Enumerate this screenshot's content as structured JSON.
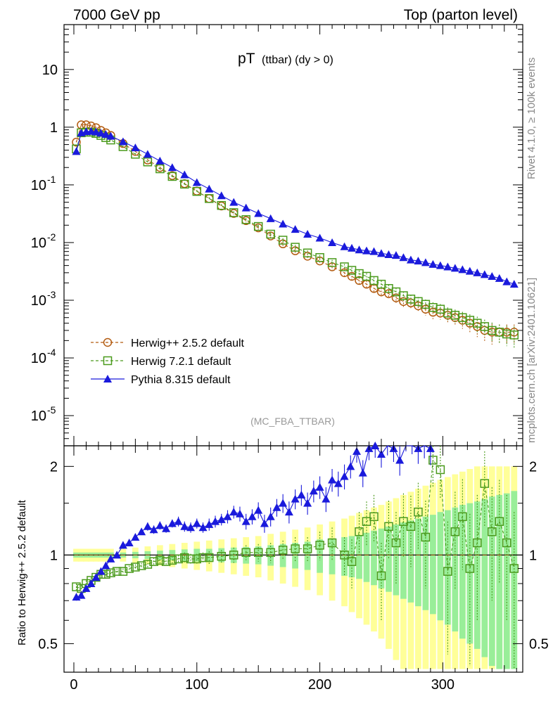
{
  "header": {
    "left": "7000 GeV pp",
    "right": "Top (parton level)"
  },
  "side": {
    "rivet": "Rivet 4.1.0, ≥ 100k events",
    "mcplots": "mcplots.cern.ch [arXiv:2401.10621]"
  },
  "colors": {
    "herwig252": "#b35c11",
    "herwig721": "#4a9a1c",
    "pythia": "#1a1adc",
    "band_yellow": "#ffff99",
    "band_green": "#99ee99"
  },
  "chart_data": [
    {
      "type": "scatter",
      "title": "pT",
      "title_sub": "(ttbar) (dy > 0)",
      "watermark": "(MC_FBA_TTBAR)",
      "yscale": "log",
      "xlim": [
        -8,
        365
      ],
      "ylim": [
        3e-06,
        60
      ],
      "y_tick_labels": [
        "10",
        "1",
        "10^-1",
        "10^-2",
        "10^-3",
        "10^-4",
        "10^-5"
      ],
      "legend": [
        {
          "label": "Herwig++ 2.5.2 default",
          "series": "herwig252"
        },
        {
          "label": "Herwig 7.2.1 default",
          "series": "herwig721"
        },
        {
          "label": "Pythia 8.315 default",
          "series": "pythia"
        }
      ],
      "series": [
        {
          "name": "Herwig++ 2.5.2 default",
          "key": "herwig252",
          "x": [
            2,
            6,
            10,
            14,
            18,
            22,
            26,
            30,
            40,
            50,
            60,
            70,
            80,
            90,
            100,
            110,
            120,
            130,
            140,
            150,
            160,
            170,
            180,
            190,
            200,
            210,
            220,
            226,
            232,
            238,
            244,
            250,
            256,
            262,
            268,
            274,
            280,
            286,
            292,
            298,
            304,
            310,
            316,
            322,
            328,
            334,
            340,
            346,
            352,
            358
          ],
          "y": [
            0.55,
            1.1,
            1.1,
            1.05,
            0.98,
            0.88,
            0.8,
            0.72,
            0.52,
            0.38,
            0.27,
            0.2,
            0.145,
            0.105,
            0.078,
            0.058,
            0.043,
            0.032,
            0.024,
            0.018,
            0.013,
            0.0095,
            0.0072,
            0.0058,
            0.0048,
            0.0038,
            0.003,
            0.0026,
            0.0022,
            0.0019,
            0.0016,
            0.0014,
            0.0013,
            0.0011,
            0.00095,
            0.0009,
            0.0008,
            0.0007,
            0.00062,
            0.0006,
            0.00055,
            0.0005,
            0.00045,
            0.0004,
            0.00035,
            0.0003,
            0.00028,
            0.00028,
            0.00028,
            0.00028
          ],
          "err": [
            0.03,
            0.05,
            0.05,
            0.05,
            0.04,
            0.04,
            0.03,
            0.03,
            0.02,
            0.015,
            0.01,
            0.008,
            0.006,
            0.005,
            0.004,
            0.003,
            0.0025,
            0.002,
            0.0016,
            0.0013,
            0.001,
            0.0008,
            0.0007,
            0.0006,
            0.0005,
            0.00045,
            0.0004,
            0.00035,
            0.0003,
            0.00028,
            0.00026,
            0.00024,
            0.00022,
            0.0002,
            0.00019,
            0.00018,
            0.00017,
            0.00016,
            0.00015,
            0.00014,
            0.00014,
            0.00013,
            0.00013,
            0.00012,
            0.00012,
            0.00011,
            0.00011,
            0.0001,
            0.0001,
            0.0001
          ]
        },
        {
          "name": "Herwig 7.2.1 default",
          "key": "herwig721",
          "x": [
            2,
            6,
            10,
            14,
            18,
            22,
            26,
            30,
            40,
            50,
            60,
            70,
            80,
            90,
            100,
            110,
            120,
            130,
            140,
            150,
            160,
            170,
            180,
            190,
            200,
            210,
            220,
            226,
            232,
            238,
            244,
            250,
            256,
            262,
            268,
            274,
            280,
            286,
            292,
            298,
            304,
            310,
            316,
            322,
            328,
            334,
            340,
            346,
            352,
            358
          ],
          "y": [
            0.42,
            0.8,
            0.82,
            0.82,
            0.78,
            0.72,
            0.66,
            0.6,
            0.46,
            0.34,
            0.25,
            0.19,
            0.14,
            0.103,
            0.077,
            0.058,
            0.044,
            0.033,
            0.025,
            0.019,
            0.014,
            0.011,
            0.0083,
            0.0066,
            0.0055,
            0.0045,
            0.0038,
            0.0033,
            0.0029,
            0.0026,
            0.0022,
            0.0019,
            0.0016,
            0.0014,
            0.0012,
            0.00105,
            0.00095,
            0.00085,
            0.00075,
            0.0007,
            0.0006,
            0.00055,
            0.0005,
            0.00045,
            0.0004,
            0.00035,
            0.0003,
            0.00028,
            0.00026,
            0.00025
          ],
          "err": [
            0.02,
            0.04,
            0.04,
            0.04,
            0.04,
            0.03,
            0.03,
            0.03,
            0.02,
            0.015,
            0.01,
            0.008,
            0.006,
            0.004,
            0.004,
            0.003,
            0.0025,
            0.002,
            0.0016,
            0.0013,
            0.0011,
            0.0009,
            0.0008,
            0.0007,
            0.0006,
            0.0005,
            0.00045,
            0.0004,
            0.00038,
            0.00035,
            0.0003,
            0.00028,
            0.00026,
            0.00024,
            0.00022,
            0.0002,
            0.00019,
            0.00018,
            0.00017,
            0.00016,
            0.00015,
            0.00014,
            0.00013,
            0.00012,
            0.00012,
            0.00011,
            0.00011,
            0.0001,
            0.0001,
            0.0001
          ]
        },
        {
          "name": "Pythia 8.315 default",
          "key": "pythia",
          "x": [
            2,
            6,
            10,
            14,
            18,
            22,
            26,
            30,
            40,
            50,
            60,
            70,
            80,
            90,
            100,
            110,
            120,
            130,
            140,
            150,
            160,
            170,
            180,
            190,
            200,
            210,
            220,
            226,
            232,
            238,
            244,
            250,
            256,
            262,
            268,
            274,
            280,
            286,
            292,
            298,
            304,
            310,
            316,
            322,
            328,
            334,
            340,
            346,
            352,
            358
          ],
          "y": [
            0.38,
            0.8,
            0.84,
            0.85,
            0.83,
            0.79,
            0.75,
            0.7,
            0.56,
            0.44,
            0.34,
            0.26,
            0.2,
            0.15,
            0.11,
            0.085,
            0.065,
            0.05,
            0.04,
            0.032,
            0.026,
            0.021,
            0.017,
            0.014,
            0.012,
            0.01,
            0.0085,
            0.008,
            0.0075,
            0.0072,
            0.007,
            0.0065,
            0.0062,
            0.006,
            0.0055,
            0.005,
            0.0048,
            0.0045,
            0.0042,
            0.004,
            0.0038,
            0.0036,
            0.0034,
            0.0032,
            0.003,
            0.0028,
            0.0026,
            0.0024,
            0.0021,
            0.0019
          ],
          "err": [
            0.02,
            0.04,
            0.04,
            0.04,
            0.04,
            0.03,
            0.03,
            0.03,
            0.02,
            0.015,
            0.012,
            0.009,
            0.007,
            0.005,
            0.004,
            0.003,
            0.0025,
            0.002,
            0.0017,
            0.0015,
            0.0012,
            0.001,
            0.0009,
            0.0008,
            0.0007,
            0.0006,
            0.0006,
            0.00055,
            0.0005,
            0.0005,
            0.00048,
            0.00046,
            0.00045,
            0.00044,
            0.00042,
            0.0004,
            0.00039,
            0.00038,
            0.00036,
            0.00035,
            0.00034,
            0.00033,
            0.00032,
            0.00031,
            0.0003,
            0.00029,
            0.00028,
            0.00027,
            0.00026,
            0.00025
          ]
        }
      ]
    },
    {
      "type": "scatter",
      "ylabel": "Ratio to Herwig++ 2.5.2 default",
      "xlim": [
        -8,
        365
      ],
      "ylim": [
        0.4,
        2.35
      ],
      "yscale": "log",
      "x_ticks": [
        0,
        100,
        200,
        300
      ],
      "y_ticks": [
        0.5,
        1,
        2
      ],
      "reference_line": 1,
      "band_x": [
        2,
        6,
        10,
        14,
        18,
        22,
        26,
        30,
        40,
        50,
        60,
        70,
        80,
        90,
        100,
        110,
        120,
        130,
        140,
        150,
        160,
        170,
        180,
        190,
        200,
        210,
        220,
        226,
        232,
        238,
        244,
        250,
        256,
        262,
        268,
        274,
        280,
        286,
        292,
        298,
        304,
        310,
        316,
        322,
        328,
        334,
        340,
        346,
        352,
        358
      ],
      "band_green_halfwidth": [
        0.02,
        0.02,
        0.02,
        0.02,
        0.02,
        0.02,
        0.02,
        0.02,
        0.02,
        0.025,
        0.03,
        0.035,
        0.04,
        0.045,
        0.05,
        0.05,
        0.055,
        0.06,
        0.065,
        0.07,
        0.08,
        0.09,
        0.1,
        0.11,
        0.13,
        0.14,
        0.15,
        0.16,
        0.17,
        0.19,
        0.21,
        0.23,
        0.25,
        0.27,
        0.29,
        0.31,
        0.33,
        0.35,
        0.37,
        0.4,
        0.42,
        0.45,
        0.48,
        0.5,
        0.52,
        0.55,
        0.58,
        0.6,
        0.62,
        0.65
      ],
      "band_yellow_halfwidth": [
        0.05,
        0.05,
        0.05,
        0.05,
        0.05,
        0.05,
        0.05,
        0.05,
        0.05,
        0.06,
        0.07,
        0.08,
        0.09,
        0.1,
        0.11,
        0.12,
        0.13,
        0.14,
        0.15,
        0.16,
        0.18,
        0.2,
        0.22,
        0.24,
        0.27,
        0.3,
        0.33,
        0.36,
        0.39,
        0.42,
        0.45,
        0.48,
        0.52,
        0.56,
        0.6,
        0.64,
        0.68,
        0.72,
        0.76,
        0.8,
        0.84,
        0.88,
        0.92,
        0.96,
        1.0,
        1.0,
        1.0,
        1.0,
        1.0,
        1.0
      ],
      "series": [
        {
          "name": "Herwig 7.2.1 default",
          "key": "herwig721",
          "x": [
            2,
            6,
            10,
            14,
            18,
            22,
            26,
            30,
            35,
            40,
            45,
            50,
            55,
            60,
            65,
            70,
            75,
            80,
            85,
            90,
            95,
            100,
            105,
            110,
            120,
            130,
            140,
            150,
            160,
            170,
            180,
            190,
            200,
            210,
            220,
            226,
            232,
            238,
            244,
            250,
            256,
            262,
            268,
            274,
            280,
            286,
            292,
            298,
            304,
            310,
            316,
            322,
            328,
            334,
            340,
            346,
            352,
            358
          ],
          "y": [
            0.78,
            0.77,
            0.8,
            0.82,
            0.84,
            0.86,
            0.86,
            0.87,
            0.88,
            0.88,
            0.9,
            0.91,
            0.92,
            0.93,
            0.95,
            0.96,
            0.95,
            0.96,
            0.97,
            0.98,
            0.97,
            0.97,
            0.98,
            0.98,
            0.99,
            1.0,
            1.02,
            1.02,
            1.02,
            1.04,
            1.05,
            1.05,
            1.08,
            1.1,
            1.0,
            0.95,
            1.2,
            1.3,
            1.35,
            0.85,
            1.25,
            1.1,
            1.3,
            1.25,
            1.4,
            1.15,
            2.1,
            1.95,
            0.88,
            1.2,
            1.35,
            0.9,
            1.1,
            1.75,
            1.2,
            1.3,
            1.1,
            0.9
          ],
          "err": [
            0.02,
            0.02,
            0.02,
            0.02,
            0.02,
            0.02,
            0.02,
            0.02,
            0.02,
            0.02,
            0.02,
            0.02,
            0.02,
            0.03,
            0.03,
            0.03,
            0.03,
            0.03,
            0.03,
            0.04,
            0.04,
            0.04,
            0.04,
            0.05,
            0.05,
            0.06,
            0.06,
            0.07,
            0.08,
            0.08,
            0.1,
            0.1,
            0.12,
            0.14,
            0.15,
            0.18,
            0.2,
            0.22,
            0.25,
            0.25,
            0.28,
            0.3,
            0.32,
            0.34,
            0.36,
            0.38,
            0.4,
            0.4,
            0.42,
            0.44,
            0.46,
            0.48,
            0.5,
            0.5,
            0.5,
            0.5,
            0.5,
            0.5
          ]
        },
        {
          "name": "Pythia 8.315 default",
          "key": "pythia",
          "x": [
            2,
            6,
            10,
            14,
            18,
            22,
            26,
            30,
            35,
            40,
            45,
            50,
            55,
            60,
            65,
            70,
            75,
            80,
            85,
            90,
            95,
            100,
            105,
            110,
            115,
            120,
            125,
            130,
            135,
            140,
            145,
            150,
            155,
            160,
            165,
            170,
            175,
            180,
            185,
            190,
            195,
            200,
            205,
            210,
            215,
            220,
            225,
            230,
            235,
            240,
            245,
            250,
            255,
            260,
            265,
            270,
            275,
            280,
            285,
            290
          ],
          "y": [
            0.72,
            0.73,
            0.77,
            0.8,
            0.84,
            0.88,
            0.92,
            0.97,
            1.0,
            1.08,
            1.1,
            1.15,
            1.2,
            1.25,
            1.22,
            1.26,
            1.23,
            1.28,
            1.3,
            1.25,
            1.24,
            1.28,
            1.24,
            1.27,
            1.3,
            1.32,
            1.35,
            1.4,
            1.38,
            1.3,
            1.35,
            1.42,
            1.28,
            1.35,
            1.45,
            1.5,
            1.4,
            1.55,
            1.6,
            1.5,
            1.65,
            1.7,
            1.55,
            1.8,
            1.75,
            1.85,
            2.0,
            2.25,
            1.9,
            2.3,
            2.35,
            2.2,
            2.4,
            2.3,
            2.1,
            2.5,
            2.45,
            2.3,
            2.4,
            2.3
          ],
          "err": [
            0.02,
            0.02,
            0.02,
            0.02,
            0.02,
            0.02,
            0.02,
            0.02,
            0.02,
            0.03,
            0.03,
            0.03,
            0.03,
            0.04,
            0.04,
            0.04,
            0.04,
            0.04,
            0.05,
            0.05,
            0.05,
            0.05,
            0.05,
            0.06,
            0.06,
            0.06,
            0.07,
            0.07,
            0.08,
            0.08,
            0.08,
            0.09,
            0.09,
            0.1,
            0.1,
            0.11,
            0.12,
            0.12,
            0.13,
            0.13,
            0.14,
            0.15,
            0.15,
            0.16,
            0.17,
            0.18,
            0.18,
            0.19,
            0.2,
            0.2,
            0.21,
            0.22,
            0.22,
            0.23,
            0.24,
            0.25,
            0.25,
            0.26,
            0.27,
            0.28
          ]
        }
      ]
    }
  ]
}
